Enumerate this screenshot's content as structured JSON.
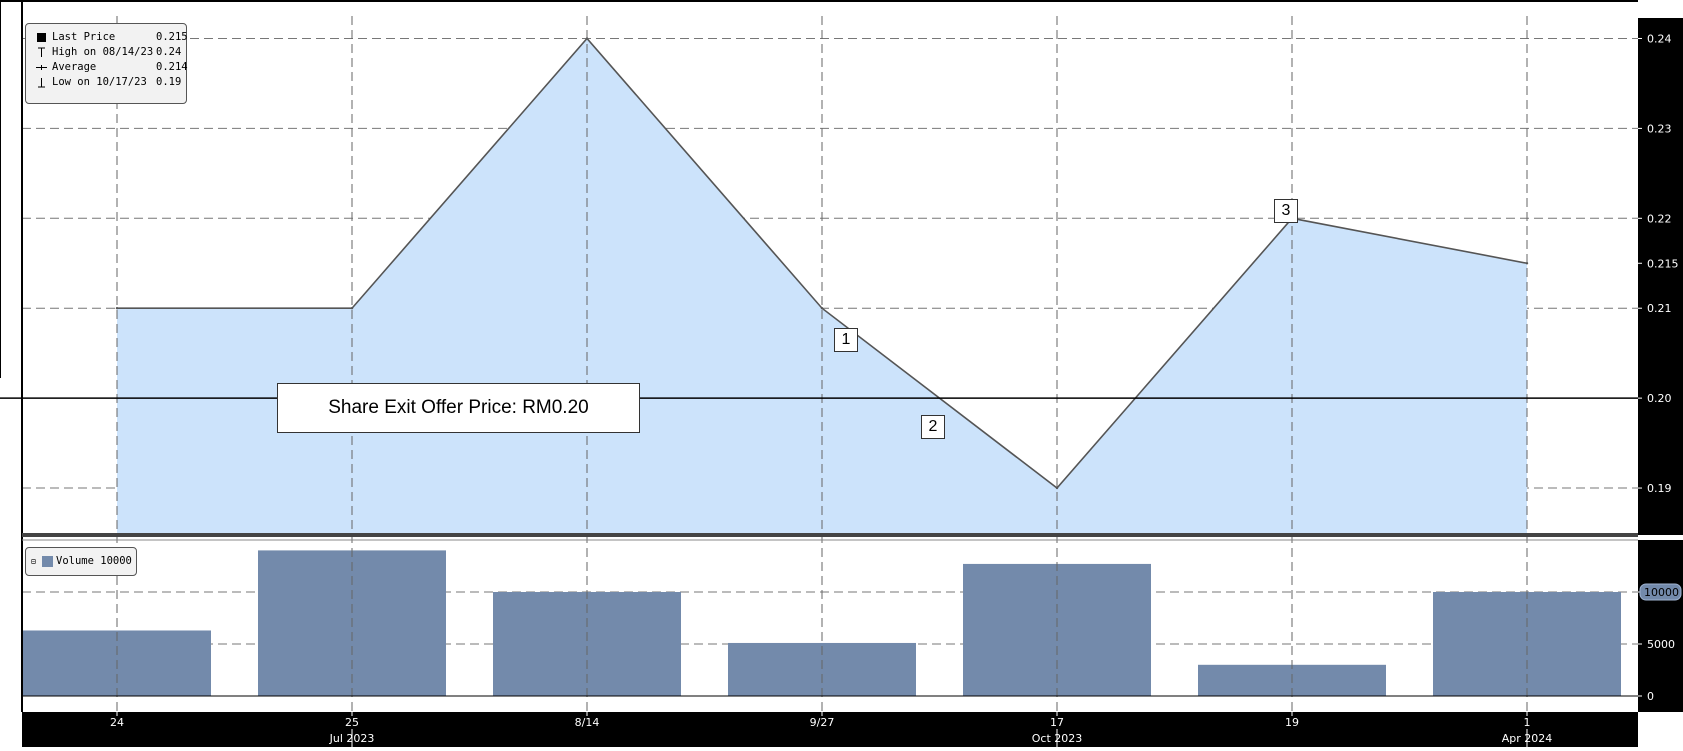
{
  "chart_data": [
    {
      "type": "area",
      "name": "price-panel",
      "categories": [
        "24",
        "25",
        "8/14",
        "9/27",
        "17",
        "19",
        "1"
      ],
      "secondary_labels": [
        "",
        "Jul 2023",
        "",
        "",
        "Oct 2023",
        "",
        "Apr 2024"
      ],
      "series": [
        {
          "name": "Last Price",
          "values": [
            0.21,
            0.21,
            0.24,
            0.21,
            0.19,
            0.22,
            0.215
          ]
        }
      ],
      "ylim": [
        0.185,
        0.2425
      ],
      "yticks": [
        "0.24",
        "0.23",
        "0.22",
        "0.215",
        "0.21",
        "0.20",
        "0.19"
      ],
      "reference_line": {
        "value": 0.2,
        "label": "Share Exit Offer Price: RM0.20"
      },
      "annotations": [
        {
          "label": "1",
          "x": "9/27",
          "y": 0.21
        },
        {
          "label": "2",
          "x_between": [
            "9/27",
            "17"
          ],
          "y": 0.2
        },
        {
          "label": "3",
          "x": "19",
          "y": 0.22
        }
      ],
      "legend": {
        "placement": "top-left",
        "rows": [
          {
            "label": "Last Price",
            "value": "0.215",
            "icon": "filled-square-icon"
          },
          {
            "label": "High on 08/14/23",
            "value": "0.24",
            "icon": "high-marker-icon"
          },
          {
            "label": "Average",
            "value": "0.214",
            "icon": "average-line-icon"
          },
          {
            "label": "Low on 10/17/23",
            "value": "0.19",
            "icon": "low-marker-icon"
          }
        ]
      },
      "grid": true
    },
    {
      "type": "bar",
      "name": "volume-panel",
      "categories": [
        "24",
        "25",
        "8/14",
        "9/27",
        "17",
        "19",
        "1"
      ],
      "series": [
        {
          "name": "Volume",
          "values": [
            6300,
            14000,
            10000,
            5100,
            12700,
            3000,
            10000
          ]
        }
      ],
      "legend_label": "Volume 10000",
      "ylim": [
        0,
        15000
      ],
      "yticks": [
        "0",
        "5000",
        "10000"
      ],
      "last_value_tag": "10000",
      "grid": true
    }
  ],
  "colors": {
    "area_fill": "#cce3fb",
    "price_line": "#555555",
    "volume_bar": "#738aab",
    "axis_bg": "#000000",
    "axis_text": "#ffffff",
    "tag_bg": "#738aab"
  }
}
